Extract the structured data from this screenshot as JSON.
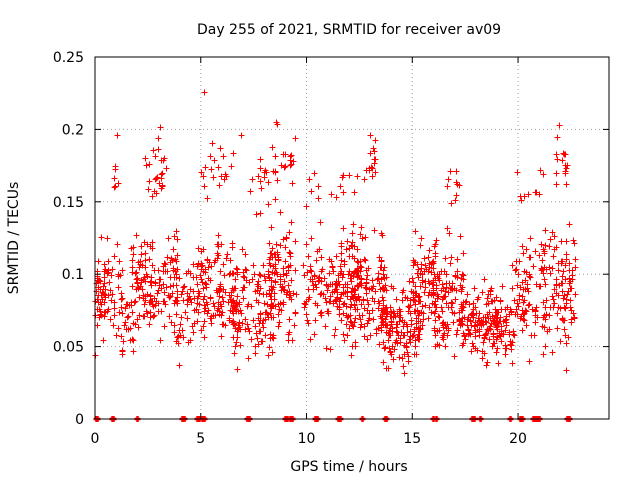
{
  "chart_data": {
    "type": "scatter",
    "title": "Day 255 of 2021, SRMTID for receiver av09",
    "xlabel": "GPS time / hours",
    "ylabel": "SRMTID / TECUs",
    "xlim": [
      0,
      24.3
    ],
    "ylim": [
      0,
      0.25
    ],
    "x_ticks": [
      0,
      5,
      10,
      15,
      20
    ],
    "x_tick_labels": [
      "0",
      "5",
      "10",
      "15",
      "20"
    ],
    "y_ticks": [
      0,
      0.05,
      0.1,
      0.15,
      0.2,
      0.25
    ],
    "y_tick_labels": [
      "0",
      "0.05",
      "0.1",
      "0.15",
      "0.2",
      "0.25"
    ],
    "grid": true,
    "marker": "plus",
    "color": "#ff0000",
    "zero_x": [
      0.05,
      0.1,
      0.8,
      0.85,
      2.0,
      4.1,
      4.2,
      4.8,
      4.9,
      5.05,
      5.1,
      5.15,
      7.2,
      7.3,
      9.0,
      9.1,
      9.2,
      9.25,
      9.3,
      10.4,
      10.5,
      11.5,
      11.6,
      12.6,
      13.7,
      13.75,
      16.0,
      16.1,
      17.8,
      17.9,
      18.2,
      19.6,
      20.1,
      20.2,
      20.7,
      20.8,
      20.9,
      21.0,
      22.3,
      22.4
    ],
    "clusters": [
      {
        "t0": 0.0,
        "t1": 1.3,
        "n": 80,
        "lo": 0.045,
        "hi": 0.13
      },
      {
        "t0": 0.9,
        "t1": 1.1,
        "n": 6,
        "lo": 0.14,
        "hi": 0.2
      },
      {
        "t0": 1.2,
        "t1": 1.9,
        "n": 25,
        "lo": 0.025,
        "hi": 0.1
      },
      {
        "t0": 1.7,
        "t1": 3.9,
        "n": 150,
        "lo": 0.05,
        "hi": 0.14
      },
      {
        "t0": 2.3,
        "t1": 3.4,
        "n": 25,
        "lo": 0.14,
        "hi": 0.2
      },
      {
        "t0": 3.8,
        "t1": 4.6,
        "n": 35,
        "lo": 0.02,
        "hi": 0.12
      },
      {
        "t0": 4.6,
        "t1": 6.8,
        "n": 150,
        "lo": 0.035,
        "hi": 0.14
      },
      {
        "t0": 5.0,
        "t1": 6.6,
        "n": 20,
        "lo": 0.14,
        "hi": 0.2
      },
      {
        "t0": 6.5,
        "t1": 8.4,
        "n": 120,
        "lo": 0.03,
        "hi": 0.13
      },
      {
        "t0": 7.3,
        "t1": 8.6,
        "n": 20,
        "lo": 0.13,
        "hi": 0.2
      },
      {
        "t0": 8.2,
        "t1": 9.5,
        "n": 100,
        "lo": 0.04,
        "hi": 0.15
      },
      {
        "t0": 8.5,
        "t1": 9.5,
        "n": 15,
        "lo": 0.15,
        "hi": 0.2
      },
      {
        "t0": 9.8,
        "t1": 12.6,
        "n": 180,
        "lo": 0.04,
        "hi": 0.14
      },
      {
        "t0": 9.9,
        "t1": 12.4,
        "n": 15,
        "lo": 0.14,
        "hi": 0.185
      },
      {
        "t0": 12.0,
        "t1": 13.8,
        "n": 130,
        "lo": 0.03,
        "hi": 0.15
      },
      {
        "t0": 12.5,
        "t1": 13.3,
        "n": 15,
        "lo": 0.15,
        "hi": 0.2
      },
      {
        "t0": 13.5,
        "t1": 15.4,
        "n": 150,
        "lo": 0.022,
        "hi": 0.11
      },
      {
        "t0": 15.0,
        "t1": 16.2,
        "n": 80,
        "lo": 0.04,
        "hi": 0.15
      },
      {
        "t0": 15.9,
        "t1": 17.4,
        "n": 110,
        "lo": 0.03,
        "hi": 0.14
      },
      {
        "t0": 16.6,
        "t1": 17.3,
        "n": 10,
        "lo": 0.14,
        "hi": 0.185
      },
      {
        "t0": 17.3,
        "t1": 19.7,
        "n": 180,
        "lo": 0.03,
        "hi": 0.105
      },
      {
        "t0": 19.7,
        "t1": 21.3,
        "n": 90,
        "lo": 0.03,
        "hi": 0.14
      },
      {
        "t0": 19.9,
        "t1": 21.2,
        "n": 10,
        "lo": 0.14,
        "hi": 0.18
      },
      {
        "t0": 21.2,
        "t1": 22.7,
        "n": 100,
        "lo": 0.03,
        "hi": 0.15
      },
      {
        "t0": 21.8,
        "t1": 22.3,
        "n": 15,
        "lo": 0.15,
        "hi": 0.205
      }
    ],
    "notable_points": [
      {
        "x": 5.15,
        "y": 0.226
      },
      {
        "x": 8.55,
        "y": 0.205
      },
      {
        "x": 8.6,
        "y": 0.204
      },
      {
        "x": 21.95,
        "y": 0.203
      },
      {
        "x": 3.05,
        "y": 0.202
      },
      {
        "x": 1.05,
        "y": 0.196
      },
      {
        "x": 3.0,
        "y": 0.194
      },
      {
        "x": 6.9,
        "y": 0.196
      },
      {
        "x": 13.0,
        "y": 0.196
      },
      {
        "x": 0.0,
        "y": 0.044
      }
    ]
  }
}
